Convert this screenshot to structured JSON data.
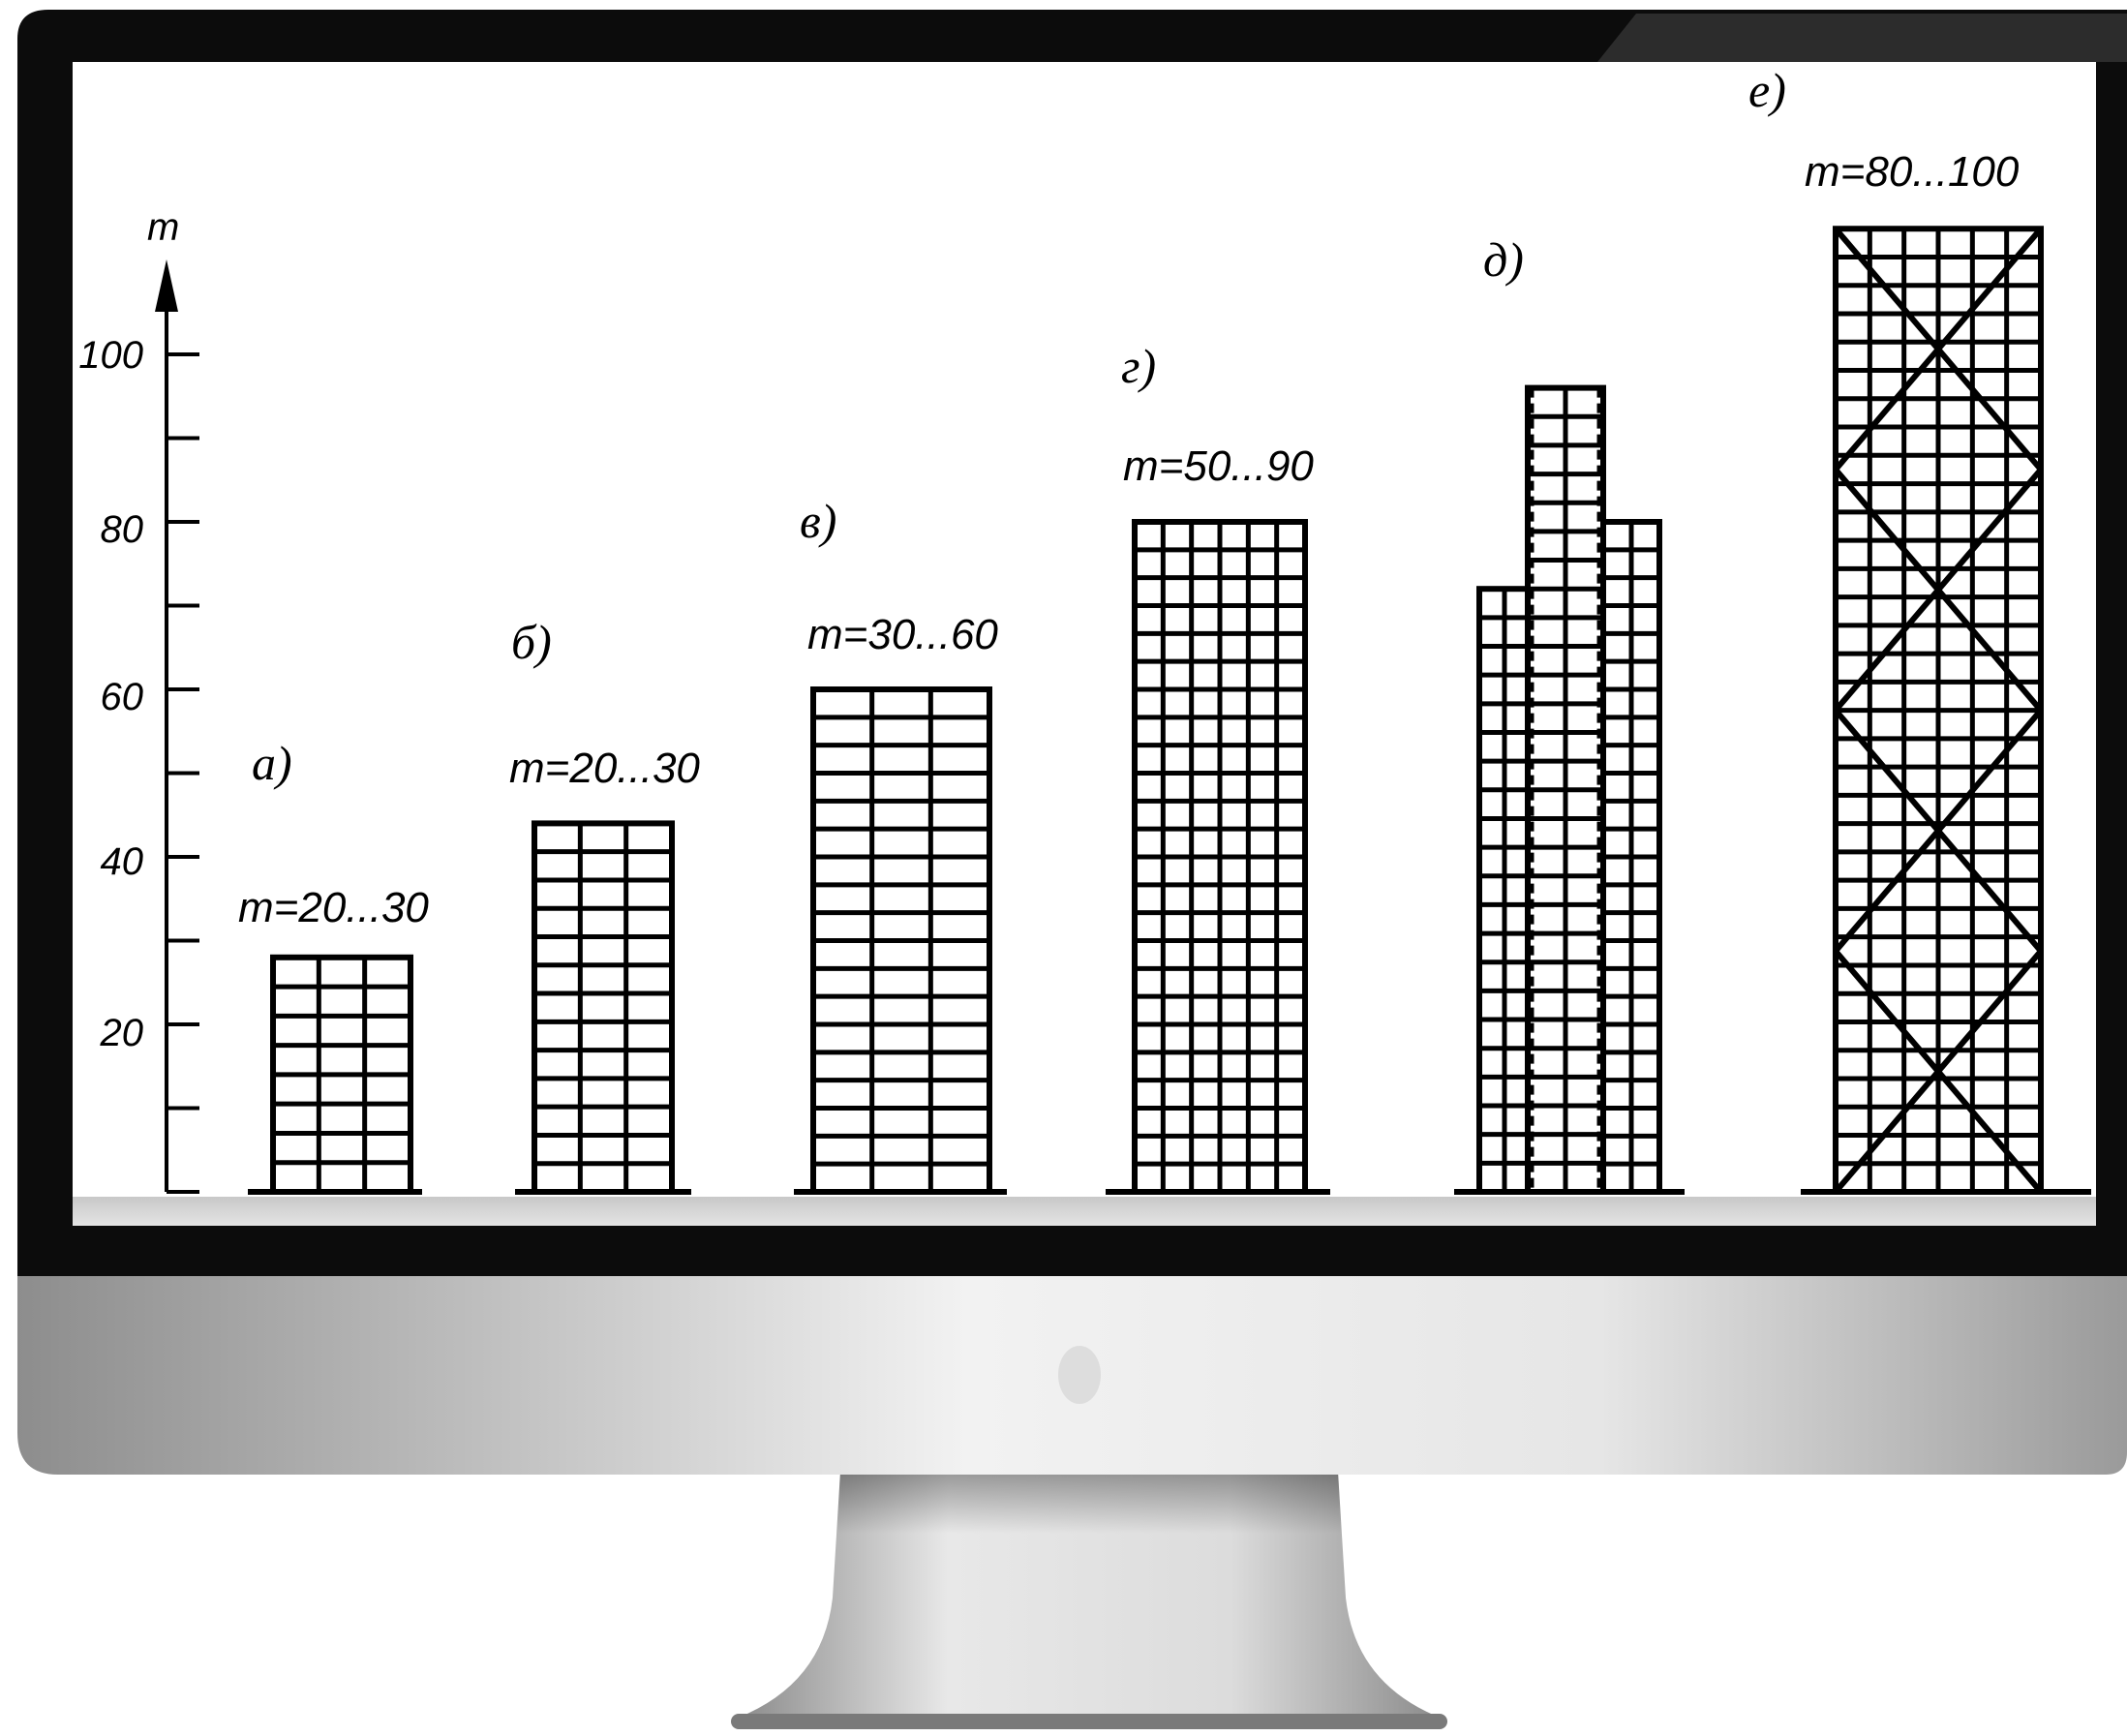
{
  "figure": {
    "axis": {
      "unit_label": "m",
      "tick_labels": [
        "100",
        "80",
        "60",
        "40",
        "20"
      ]
    },
    "buildings": [
      {
        "letter": "а)",
        "range": "m=20...30",
        "height_m": 28,
        "cols": 3,
        "type": "frame"
      },
      {
        "letter": "б)",
        "range": "m=20...30",
        "height_m": 44,
        "cols": 3,
        "type": "frame"
      },
      {
        "letter": "в)",
        "range": "m=30...60",
        "height_m": 60,
        "cols": 3,
        "type": "frame"
      },
      {
        "letter": "г)",
        "range": "m=50...90",
        "height_m": 80,
        "cols": 6,
        "type": "frame"
      },
      {
        "letter": "д)",
        "range": "",
        "height_m": 96,
        "cols": 6,
        "type": "stepped-tube",
        "step_heights_m": [
          72,
          96,
          80
        ]
      },
      {
        "letter": "е)",
        "range": "m=80...100",
        "height_m": 115,
        "cols": 6,
        "type": "braced-tube"
      }
    ]
  },
  "colors": {
    "bezel": "#0c0c0c",
    "screen": "#ffffff",
    "ink": "#000000",
    "chin_light": "#f2f2f2",
    "chin_dark": "#8d8d8d",
    "stand": "#bdbdbd"
  }
}
